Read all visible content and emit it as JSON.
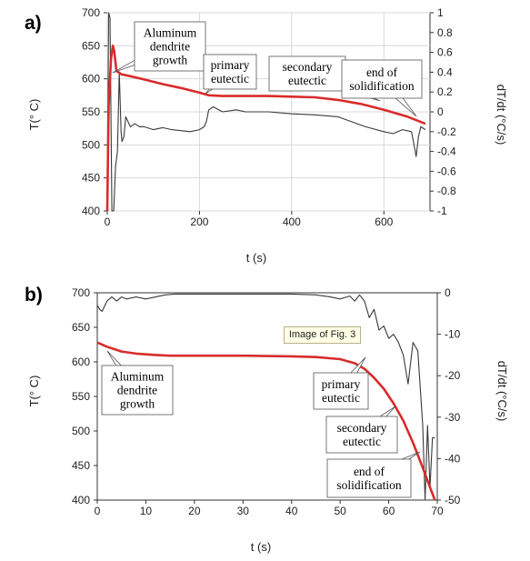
{
  "chart_data": [
    {
      "panel_label": "a)",
      "type": "line",
      "xlabel": "t (s)",
      "ylabel": "T(° C)",
      "y2label": "dT/dt (°C/s)",
      "xlim": [
        0,
        700
      ],
      "ylim": [
        400,
        700
      ],
      "y2lim": [
        -1,
        1
      ],
      "x_ticks": [
        "0",
        "200",
        "400",
        "600"
      ],
      "y_ticks": [
        "400",
        "450",
        "500",
        "550",
        "600",
        "650",
        "700"
      ],
      "y2_ticks": [
        "-1",
        "-0.8",
        "-0.6",
        "-0.4",
        "-0.2",
        "0",
        "0.2",
        "0.4",
        "0.6",
        "0.8",
        "1"
      ],
      "grid": true,
      "colors": {
        "temperature": "#d92b2b",
        "rate": "#3a3a3a"
      },
      "series": [
        {
          "axis": "left",
          "x": [
            0,
            3,
            8,
            12,
            15,
            20,
            30,
            50,
            80,
            120,
            160,
            200,
            220,
            250,
            300,
            350,
            400,
            450,
            500,
            550,
            600,
            650,
            690
          ],
          "y": [
            400,
            560,
            630,
            650,
            642,
            612,
            607,
            604,
            599,
            592,
            586,
            579,
            575,
            574,
            574,
            574,
            573,
            572,
            568,
            562,
            553,
            543,
            532
          ]
        },
        {
          "axis": "right",
          "x": [
            0,
            3,
            6,
            10,
            14,
            18,
            22,
            26,
            28,
            30,
            32,
            36,
            40,
            45,
            50,
            60,
            70,
            80,
            100,
            120,
            140,
            160,
            180,
            200,
            210,
            215,
            220,
            230,
            250,
            280,
            300,
            350,
            400,
            450,
            500,
            530,
            560,
            600,
            620,
            640,
            660,
            670,
            675,
            680,
            690
          ],
          "y": [
            -1,
            1,
            0.95,
            -1,
            -1,
            -0.55,
            -0.4,
            0.4,
            0.1,
            -0.2,
            -0.3,
            -0.25,
            -0.05,
            -0.1,
            -0.15,
            -0.12,
            -0.15,
            -0.15,
            -0.18,
            -0.16,
            -0.18,
            -0.19,
            -0.2,
            -0.18,
            -0.15,
            -0.1,
            0.02,
            0.05,
            0,
            0.02,
            0,
            0,
            -0.02,
            -0.03,
            -0.05,
            -0.1,
            -0.15,
            -0.2,
            -0.22,
            -0.18,
            -0.2,
            -0.45,
            -0.25,
            -0.15,
            -0.18
          ]
        }
      ],
      "annotations": [
        {
          "text": [
            "Aluminum",
            "dendrite",
            "growth"
          ],
          "x": 20,
          "y": 612
        },
        {
          "text": [
            "primary",
            "eutectic"
          ],
          "x": 222,
          "y": 575
        },
        {
          "text": [
            "secondary",
            "eutectic"
          ],
          "x": 560,
          "y": 561
        },
        {
          "text": [
            "end of",
            "solidification"
          ],
          "x": 680,
          "y": 535
        }
      ]
    },
    {
      "panel_label": "b)",
      "type": "line",
      "xlabel": "t (s)",
      "ylabel": "T(° C)",
      "y2label": "dT/dt (°C/s)",
      "xlim": [
        0,
        70
      ],
      "ylim": [
        400,
        700
      ],
      "y2lim": [
        -50,
        0
      ],
      "x_ticks": [
        "0",
        "10",
        "20",
        "30",
        "40",
        "50",
        "60",
        "70"
      ],
      "y_ticks": [
        "400",
        "450",
        "500",
        "550",
        "600",
        "650",
        "700"
      ],
      "y2_ticks": [
        "0",
        "-10",
        "-20",
        "-30",
        "-40",
        "-50"
      ],
      "grid": false,
      "colors": {
        "temperature": "#d92b2b",
        "rate": "#3a3a3a"
      },
      "series": [
        {
          "axis": "left",
          "x": [
            0,
            2,
            5,
            8,
            12,
            15,
            20,
            30,
            40,
            45,
            50,
            53,
            55,
            57,
            59,
            61,
            63,
            65,
            67,
            69.5
          ],
          "y": [
            628,
            622,
            615,
            612,
            610,
            609,
            609,
            609,
            608,
            607,
            604,
            598,
            590,
            577,
            561,
            540,
            515,
            483,
            447,
            400
          ]
        },
        {
          "axis": "right",
          "x": [
            0,
            0.5,
            1,
            2,
            3,
            4,
            5,
            6,
            8,
            10,
            12,
            14,
            16,
            20,
            25,
            30,
            35,
            40,
            45,
            48,
            50,
            52,
            53,
            54,
            55,
            56,
            57,
            58,
            59,
            60,
            61,
            62,
            63,
            64,
            65,
            66,
            67,
            67.5,
            68,
            68.5,
            69,
            69.5
          ],
          "y": [
            -3,
            -4,
            -4.5,
            -2,
            -1,
            -2,
            -1,
            -1.5,
            -1,
            -1.5,
            -1,
            -0.5,
            -0.3,
            -0.3,
            -0.3,
            -0.3,
            -0.3,
            -0.3,
            -0.5,
            -1,
            -1.5,
            -0.8,
            -2,
            -0.5,
            -2,
            -6,
            -4,
            -9,
            -8,
            -11,
            -10,
            -12,
            -15,
            -22,
            -12,
            -14,
            -32,
            -50,
            -32,
            -47,
            -35,
            -35
          ]
        }
      ],
      "annotations": [
        {
          "text": [
            "Aluminum",
            "dendrite",
            "growth"
          ],
          "x": 2,
          "y": 620
        },
        {
          "text": [
            "primary",
            "eutectic"
          ],
          "x": 55,
          "y": 590
        },
        {
          "text": [
            "secondary",
            "eutectic"
          ],
          "x": 61,
          "y": 540
        },
        {
          "text": [
            "end of",
            "solidification"
          ],
          "x": 66,
          "y": 460
        }
      ]
    }
  ],
  "tooltip": {
    "text": "Image of Fig. 3"
  }
}
